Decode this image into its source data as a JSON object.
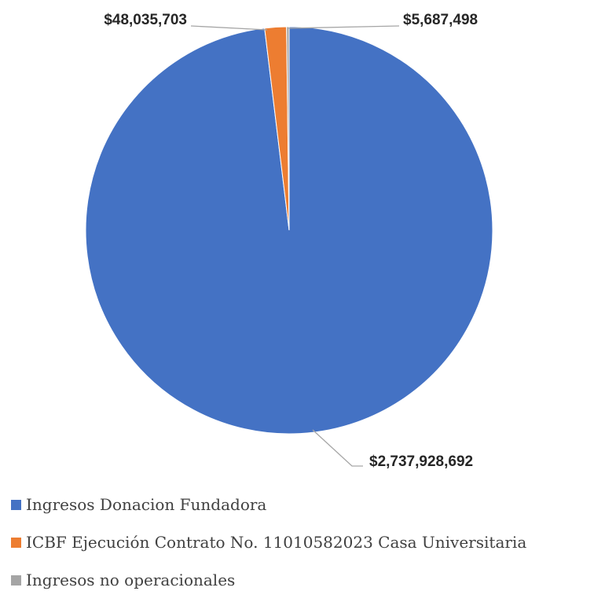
{
  "chart_data": {
    "type": "pie",
    "title": "",
    "series": [
      {
        "values": [
          2737928692,
          48035703,
          5687498
        ],
        "labels": [
          "Ingresos Donacion Fundadora",
          "ICBF Ejecución Contrato No. 11010582023 Casa Universitaria",
          "Ingresos no operacionales"
        ],
        "data_labels": [
          "$2,737,928,692",
          "$48,035,703",
          "$5,687,498"
        ],
        "colors": [
          "#4472C4",
          "#ED7D31",
          "#A5A5A5"
        ]
      }
    ],
    "legend_position": "bottom",
    "start_angle": "top, clockwise"
  }
}
